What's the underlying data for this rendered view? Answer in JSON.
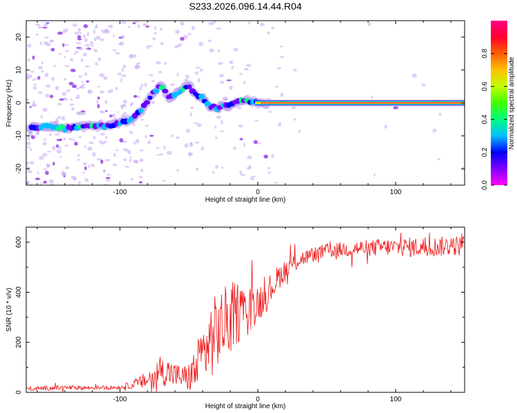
{
  "title": "S233.2026.096.14.44.R04",
  "chart_data": [
    {
      "type": "heatmap",
      "title": "S233.2026.096.14.44.R04",
      "xlabel": "Height of straight line (km)",
      "ylabel": "Frequency (Hz)",
      "xlim": [
        -168,
        150
      ],
      "ylim": [
        -25,
        25
      ],
      "xticks": [
        -100,
        0,
        100
      ],
      "yticks": [
        -20,
        -10,
        0,
        10,
        20
      ],
      "ridge": {
        "x": [
          -165,
          -150,
          -140,
          -130,
          -120,
          -110,
          -100,
          -95,
          -90,
          -85,
          -80,
          -75,
          -70,
          -65,
          -60,
          -55,
          -50,
          -45,
          -40,
          -35,
          -30,
          -25,
          -20,
          -15,
          -10,
          -5,
          0,
          20,
          50,
          80,
          110,
          150
        ],
        "freq": [
          -7.5,
          -7.0,
          -7.8,
          -7.2,
          -7.0,
          -7.0,
          -6.0,
          -5.5,
          -4.5,
          -2.5,
          0.5,
          3.5,
          5.5,
          1.5,
          2.5,
          4.0,
          5.5,
          2.5,
          1.5,
          -1.0,
          -1.5,
          -1.0,
          -1.0,
          0.5,
          1.0,
          0.5,
          0.0,
          0.0,
          0.0,
          0.0,
          0.0,
          0.0
        ]
      },
      "colorbar": {
        "label": "Normalized spectral amplitude",
        "range": [
          0.0,
          1.0
        ],
        "ticks": [
          "0.0",
          "0.2",
          "0.4",
          "0.6",
          "0.8"
        ],
        "tick_values": [
          0.0,
          0.2,
          0.4,
          0.6,
          0.8
        ],
        "colormap": [
          "#ff00ff",
          "#8000ff",
          "#0000ff",
          "#00c0ff",
          "#00ff80",
          "#40ff00",
          "#c0ff00",
          "#ffc000",
          "#ff6000",
          "#ff0030",
          "#ff0080"
        ]
      }
    },
    {
      "type": "line",
      "xlabel": "Height of straight line (km)",
      "ylabel": "SNR (10 * v/v)",
      "xlim": [
        -168,
        150
      ],
      "ylim": [
        0,
        660
      ],
      "xticks": [
        -100,
        0,
        100
      ],
      "yticks": [
        0,
        200,
        400,
        600
      ],
      "color": "#ee2222",
      "series": [
        {
          "name": "SNR",
          "x": [
            -168,
            -140,
            -120,
            -100,
            -90,
            -80,
            -75,
            -70,
            -65,
            -60,
            -55,
            -50,
            -45,
            -40,
            -35,
            -30,
            -25,
            -20,
            -15,
            -10,
            -5,
            0,
            5,
            10,
            15,
            20,
            25,
            30,
            40,
            50,
            60,
            70,
            80,
            90,
            100,
            110,
            120,
            130,
            140,
            150
          ],
          "mean": [
            15,
            18,
            18,
            20,
            30,
            50,
            70,
            85,
            80,
            70,
            60,
            60,
            90,
            150,
            200,
            240,
            270,
            300,
            320,
            330,
            340,
            360,
            380,
            420,
            460,
            490,
            510,
            530,
            550,
            565,
            570,
            575,
            575,
            580,
            580,
            580,
            580,
            582,
            585,
            585
          ],
          "amp": [
            8,
            10,
            8,
            8,
            15,
            40,
            55,
            55,
            60,
            50,
            45,
            60,
            100,
            120,
            150,
            160,
            150,
            140,
            130,
            100,
            90,
            80,
            70,
            60,
            50,
            45,
            40,
            35,
            30,
            30,
            30,
            35,
            35,
            35,
            35,
            40,
            40,
            40,
            40,
            40
          ]
        }
      ]
    }
  ]
}
